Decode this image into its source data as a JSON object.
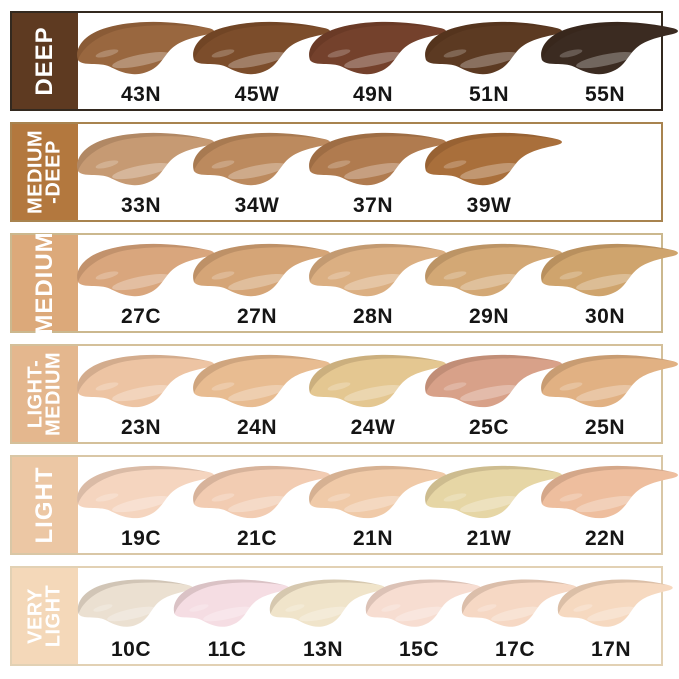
{
  "chart_data": {
    "type": "table",
    "title": "Foundation shade swatch chart by depth group",
    "legend_position": "left",
    "rows": [
      {
        "category": "DEEP",
        "label_lines": [
          "DEEP"
        ],
        "tab_color": "#5E3A21",
        "border_color": "#33291F",
        "shades": [
          {
            "code": "43N",
            "color": "#99673F"
          },
          {
            "code": "45W",
            "color": "#7C4D2B"
          },
          {
            "code": "49N",
            "color": "#74412C"
          },
          {
            "code": "51N",
            "color": "#5C3A22"
          },
          {
            "code": "55N",
            "color": "#3B2B21"
          }
        ]
      },
      {
        "category": "MEDIUM-DEEP",
        "label_lines": [
          "MEDIUM",
          "-DEEP"
        ],
        "tab_color": "#B3783E",
        "border_color": "#A8834F",
        "shades": [
          {
            "code": "33N",
            "color": "#C69A73"
          },
          {
            "code": "34W",
            "color": "#BC8A5E"
          },
          {
            "code": "37N",
            "color": "#B07B4F"
          },
          {
            "code": "39W",
            "color": "#A96F3B"
          }
        ]
      },
      {
        "category": "MEDIUM",
        "label_lines": [
          "MEDIUM"
        ],
        "tab_color": "#DCA97A",
        "border_color": "#CBB88E",
        "shades": [
          {
            "code": "27C",
            "color": "#D9A67D"
          },
          {
            "code": "27N",
            "color": "#D5A577"
          },
          {
            "code": "28N",
            "color": "#DBAF82"
          },
          {
            "code": "29N",
            "color": "#D3A875"
          },
          {
            "code": "30N",
            "color": "#CFA46D"
          }
        ]
      },
      {
        "category": "LIGHT-MEDIUM",
        "label_lines": [
          "LIGHT-",
          "MEDIUM"
        ],
        "tab_color": "#E4B78E",
        "border_color": "#D4C09A",
        "shades": [
          {
            "code": "23N",
            "color": "#EDC4A3"
          },
          {
            "code": "24N",
            "color": "#E8BC91"
          },
          {
            "code": "24W",
            "color": "#E4C791"
          },
          {
            "code": "25C",
            "color": "#D8A189"
          },
          {
            "code": "25N",
            "color": "#E1B183"
          }
        ]
      },
      {
        "category": "LIGHT",
        "label_lines": [
          "LIGHT"
        ],
        "tab_color": "#ECC7A4",
        "border_color": "#D9C7A6",
        "shades": [
          {
            "code": "19C",
            "color": "#F5D5BF"
          },
          {
            "code": "21C",
            "color": "#F2CCB2"
          },
          {
            "code": "21N",
            "color": "#F0CAA8"
          },
          {
            "code": "21W",
            "color": "#E6D6A5"
          },
          {
            "code": "22N",
            "color": "#EEBE9E"
          }
        ]
      },
      {
        "category": "VERY LIGHT",
        "label_lines": [
          "VERY",
          "LIGHT"
        ],
        "tab_color": "#F4D8B9",
        "border_color": "#E2D1B4",
        "shades": [
          {
            "code": "10C",
            "color": "#EBE0D1"
          },
          {
            "code": "11C",
            "color": "#F5DDE3"
          },
          {
            "code": "13N",
            "color": "#F0E4CA"
          },
          {
            "code": "15C",
            "color": "#F7DDD1"
          },
          {
            "code": "17C",
            "color": "#F6D8C4"
          },
          {
            "code": "17N",
            "color": "#F6D9C0"
          }
        ]
      }
    ]
  }
}
